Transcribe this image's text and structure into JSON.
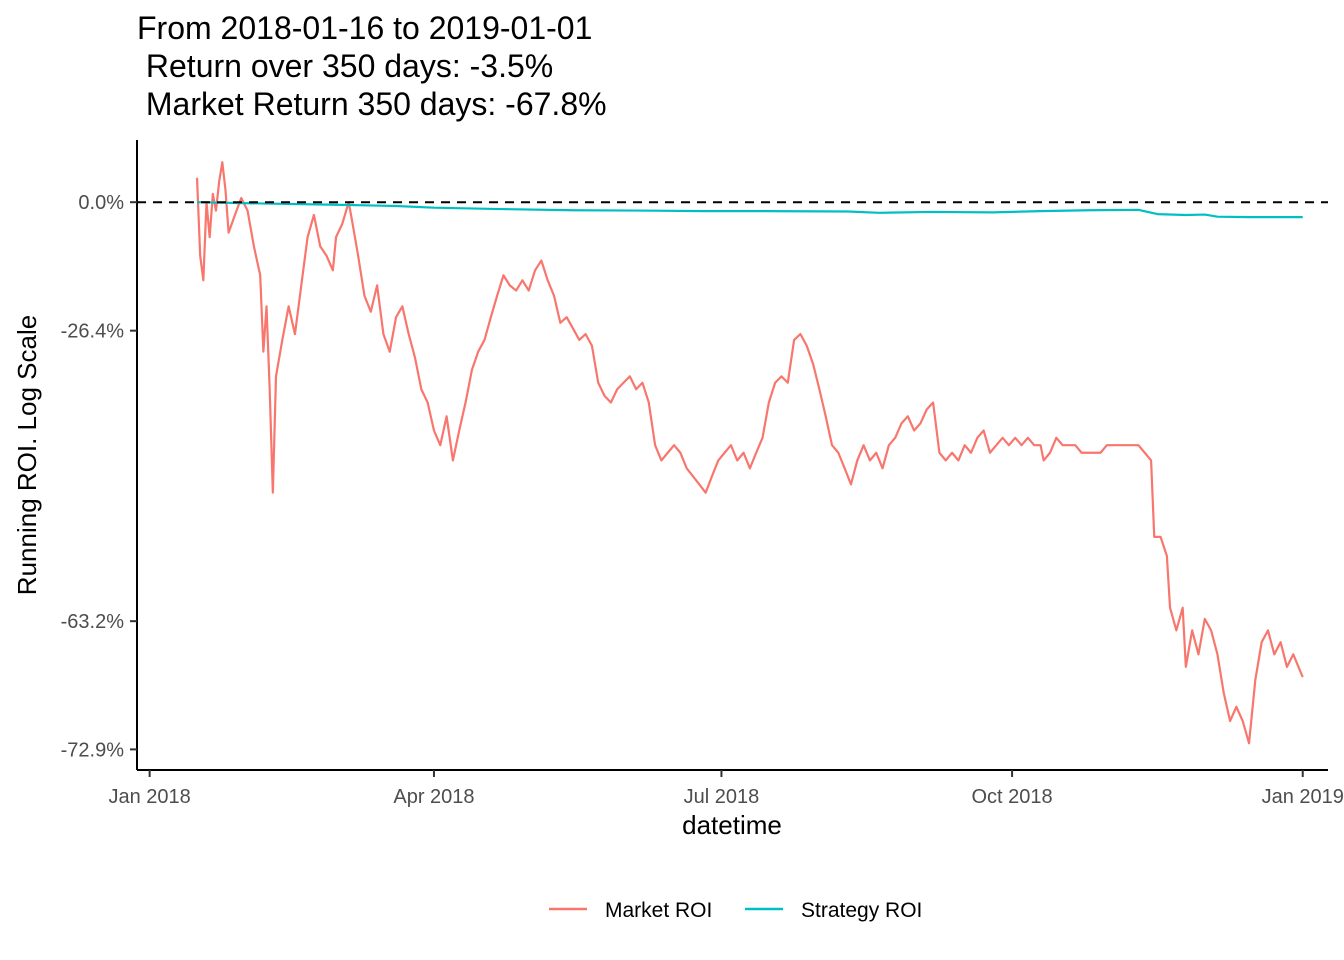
{
  "chart_data": {
    "type": "line",
    "title_lines": [
      "From 2018-01-16 to 2019-01-01",
      " Return over 350 days: -3.5%",
      " Market Return 350 days: -67.8%"
    ],
    "xlabel": "datetime",
    "ylabel": "Running ROI. Log Scale",
    "y_scale": "log",
    "x_range": [
      "2017-12-28",
      "2019-01-09"
    ],
    "y_range_pct": [
      -74.2,
      16.0
    ],
    "x_ticks": [
      {
        "date": "2018-01-01",
        "label": "Jan 2018"
      },
      {
        "date": "2018-04-01",
        "label": "Apr 2018"
      },
      {
        "date": "2018-07-01",
        "label": "Jul 2018"
      },
      {
        "date": "2018-10-01",
        "label": "Oct 2018"
      },
      {
        "date": "2019-01-01",
        "label": "Jan 2019"
      }
    ],
    "y_ticks": [
      {
        "value": 0.0,
        "label": "0.0%"
      },
      {
        "value": -26.4,
        "label": "-26.4%"
      },
      {
        "value": -63.2,
        "label": "-63.2%"
      },
      {
        "value": -72.9,
        "label": "-72.9%"
      }
    ],
    "reference_line": {
      "value": 0.0,
      "style": "dashed",
      "color": "#000000"
    },
    "grid": false,
    "legend_position": "bottom",
    "series": [
      {
        "name": "Market ROI",
        "color": "#F8766D",
        "points": [
          [
            "2018-01-16",
            6
          ],
          [
            "2018-01-17",
            -12
          ],
          [
            "2018-01-18",
            -17
          ],
          [
            "2018-01-19",
            0
          ],
          [
            "2018-01-20",
            -8
          ],
          [
            "2018-01-21",
            2
          ],
          [
            "2018-01-22",
            -2
          ],
          [
            "2018-01-23",
            5
          ],
          [
            "2018-01-24",
            10
          ],
          [
            "2018-01-25",
            3
          ],
          [
            "2018-01-26",
            -7
          ],
          [
            "2018-01-28",
            -3
          ],
          [
            "2018-01-30",
            1
          ],
          [
            "2018-02-01",
            -2
          ],
          [
            "2018-02-03",
            -10
          ],
          [
            "2018-02-05",
            -16
          ],
          [
            "2018-02-06",
            -30
          ],
          [
            "2018-02-07",
            -22
          ],
          [
            "2018-02-08",
            -36
          ],
          [
            "2018-02-09",
            -50
          ],
          [
            "2018-02-10",
            -34
          ],
          [
            "2018-02-12",
            -28
          ],
          [
            "2018-02-14",
            -22
          ],
          [
            "2018-02-16",
            -27
          ],
          [
            "2018-02-18",
            -18
          ],
          [
            "2018-02-20",
            -8
          ],
          [
            "2018-02-22",
            -3
          ],
          [
            "2018-02-24",
            -10
          ],
          [
            "2018-02-26",
            -12
          ],
          [
            "2018-02-28",
            -15
          ],
          [
            "2018-03-01",
            -8
          ],
          [
            "2018-03-03",
            -5
          ],
          [
            "2018-03-05",
            0
          ],
          [
            "2018-03-06",
            -4
          ],
          [
            "2018-03-08",
            -12
          ],
          [
            "2018-03-10",
            -20
          ],
          [
            "2018-03-12",
            -23
          ],
          [
            "2018-03-14",
            -18
          ],
          [
            "2018-03-16",
            -27
          ],
          [
            "2018-03-18",
            -30
          ],
          [
            "2018-03-20",
            -24
          ],
          [
            "2018-03-22",
            -22
          ],
          [
            "2018-03-24",
            -27
          ],
          [
            "2018-03-26",
            -31
          ],
          [
            "2018-03-28",
            -36
          ],
          [
            "2018-03-30",
            -38
          ],
          [
            "2018-04-01",
            -42
          ],
          [
            "2018-04-03",
            -44
          ],
          [
            "2018-04-05",
            -40
          ],
          [
            "2018-04-07",
            -46
          ],
          [
            "2018-04-09",
            -42
          ],
          [
            "2018-04-11",
            -38
          ],
          [
            "2018-04-13",
            -33
          ],
          [
            "2018-04-15",
            -30
          ],
          [
            "2018-04-17",
            -28
          ],
          [
            "2018-04-19",
            -24
          ],
          [
            "2018-04-21",
            -20
          ],
          [
            "2018-04-23",
            -16
          ],
          [
            "2018-04-25",
            -18
          ],
          [
            "2018-04-27",
            -19
          ],
          [
            "2018-04-29",
            -17
          ],
          [
            "2018-05-01",
            -19
          ],
          [
            "2018-05-03",
            -15
          ],
          [
            "2018-05-05",
            -13
          ],
          [
            "2018-05-07",
            -17
          ],
          [
            "2018-05-09",
            -20
          ],
          [
            "2018-05-11",
            -25
          ],
          [
            "2018-05-13",
            -24
          ],
          [
            "2018-05-15",
            -26
          ],
          [
            "2018-05-17",
            -28
          ],
          [
            "2018-05-19",
            -27
          ],
          [
            "2018-05-21",
            -29
          ],
          [
            "2018-05-23",
            -35
          ],
          [
            "2018-05-25",
            -37
          ],
          [
            "2018-05-27",
            -38
          ],
          [
            "2018-05-29",
            -36
          ],
          [
            "2018-05-31",
            -35
          ],
          [
            "2018-06-02",
            -34
          ],
          [
            "2018-06-04",
            -36
          ],
          [
            "2018-06-06",
            -35
          ],
          [
            "2018-06-08",
            -38
          ],
          [
            "2018-06-10",
            -44
          ],
          [
            "2018-06-12",
            -46
          ],
          [
            "2018-06-14",
            -45
          ],
          [
            "2018-06-16",
            -44
          ],
          [
            "2018-06-18",
            -45
          ],
          [
            "2018-06-20",
            -47
          ],
          [
            "2018-06-22",
            -48
          ],
          [
            "2018-06-24",
            -49
          ],
          [
            "2018-06-26",
            -50
          ],
          [
            "2018-06-28",
            -48
          ],
          [
            "2018-06-30",
            -46
          ],
          [
            "2018-07-02",
            -45
          ],
          [
            "2018-07-04",
            -44
          ],
          [
            "2018-07-06",
            -46
          ],
          [
            "2018-07-08",
            -45
          ],
          [
            "2018-07-10",
            -47
          ],
          [
            "2018-07-12",
            -45
          ],
          [
            "2018-07-14",
            -43
          ],
          [
            "2018-07-16",
            -38
          ],
          [
            "2018-07-18",
            -35
          ],
          [
            "2018-07-20",
            -34
          ],
          [
            "2018-07-22",
            -35
          ],
          [
            "2018-07-24",
            -28
          ],
          [
            "2018-07-26",
            -27
          ],
          [
            "2018-07-28",
            -29
          ],
          [
            "2018-07-30",
            -32
          ],
          [
            "2018-08-01",
            -36
          ],
          [
            "2018-08-03",
            -40
          ],
          [
            "2018-08-05",
            -44
          ],
          [
            "2018-08-07",
            -45
          ],
          [
            "2018-08-09",
            -47
          ],
          [
            "2018-08-11",
            -49
          ],
          [
            "2018-08-13",
            -46
          ],
          [
            "2018-08-15",
            -44
          ],
          [
            "2018-08-17",
            -46
          ],
          [
            "2018-08-19",
            -45
          ],
          [
            "2018-08-21",
            -47
          ],
          [
            "2018-08-23",
            -44
          ],
          [
            "2018-08-25",
            -43
          ],
          [
            "2018-08-27",
            -41
          ],
          [
            "2018-08-29",
            -40
          ],
          [
            "2018-08-31",
            -42
          ],
          [
            "2018-09-02",
            -41
          ],
          [
            "2018-09-04",
            -39
          ],
          [
            "2018-09-06",
            -38
          ],
          [
            "2018-09-08",
            -45
          ],
          [
            "2018-09-10",
            -46
          ],
          [
            "2018-09-12",
            -45
          ],
          [
            "2018-09-14",
            -46
          ],
          [
            "2018-09-16",
            -44
          ],
          [
            "2018-09-18",
            -45
          ],
          [
            "2018-09-20",
            -43
          ],
          [
            "2018-09-22",
            -42
          ],
          [
            "2018-09-24",
            -45
          ],
          [
            "2018-09-26",
            -44
          ],
          [
            "2018-09-28",
            -43
          ],
          [
            "2018-09-30",
            -44
          ],
          [
            "2018-10-02",
            -43
          ],
          [
            "2018-10-04",
            -44
          ],
          [
            "2018-10-06",
            -43
          ],
          [
            "2018-10-08",
            -44
          ],
          [
            "2018-10-10",
            -44
          ],
          [
            "2018-10-11",
            -46
          ],
          [
            "2018-10-13",
            -45
          ],
          [
            "2018-10-15",
            -43
          ],
          [
            "2018-10-17",
            -44
          ],
          [
            "2018-10-19",
            -44
          ],
          [
            "2018-10-21",
            -44
          ],
          [
            "2018-10-23",
            -45
          ],
          [
            "2018-10-25",
            -45
          ],
          [
            "2018-10-27",
            -45
          ],
          [
            "2018-10-29",
            -45
          ],
          [
            "2018-10-31",
            -44
          ],
          [
            "2018-11-02",
            -44
          ],
          [
            "2018-11-04",
            -44
          ],
          [
            "2018-11-06",
            -44
          ],
          [
            "2018-11-08",
            -44
          ],
          [
            "2018-11-10",
            -44
          ],
          [
            "2018-11-12",
            -45
          ],
          [
            "2018-11-14",
            -46
          ],
          [
            "2018-11-15",
            -55
          ],
          [
            "2018-11-17",
            -55
          ],
          [
            "2018-11-19",
            -57
          ],
          [
            "2018-11-20",
            -62
          ],
          [
            "2018-11-22",
            -64
          ],
          [
            "2018-11-24",
            -62
          ],
          [
            "2018-11-25",
            -67
          ],
          [
            "2018-11-27",
            -64
          ],
          [
            "2018-11-29",
            -66
          ],
          [
            "2018-12-01",
            -63
          ],
          [
            "2018-12-03",
            -64
          ],
          [
            "2018-12-05",
            -66
          ],
          [
            "2018-12-07",
            -69
          ],
          [
            "2018-12-09",
            -71
          ],
          [
            "2018-12-11",
            -70
          ],
          [
            "2018-12-13",
            -71
          ],
          [
            "2018-12-15",
            -72.5
          ],
          [
            "2018-12-17",
            -68
          ],
          [
            "2018-12-19",
            -65
          ],
          [
            "2018-12-21",
            -64
          ],
          [
            "2018-12-23",
            -66
          ],
          [
            "2018-12-25",
            -65
          ],
          [
            "2018-12-27",
            -67
          ],
          [
            "2018-12-29",
            -66
          ],
          [
            "2019-01-01",
            -67.8
          ]
        ]
      },
      {
        "name": "Strategy ROI",
        "color": "#00BFC4",
        "points": [
          [
            "2018-01-16",
            0.0
          ],
          [
            "2018-02-05",
            -0.3
          ],
          [
            "2018-03-01",
            -0.6
          ],
          [
            "2018-03-20",
            -0.9
          ],
          [
            "2018-04-01",
            -1.3
          ],
          [
            "2018-04-20",
            -1.6
          ],
          [
            "2018-05-15",
            -1.9
          ],
          [
            "2018-06-10",
            -2.0
          ],
          [
            "2018-06-25",
            -2.1
          ],
          [
            "2018-07-15",
            -2.1
          ],
          [
            "2018-08-10",
            -2.2
          ],
          [
            "2018-08-20",
            -2.5
          ],
          [
            "2018-09-05",
            -2.3
          ],
          [
            "2018-09-25",
            -2.4
          ],
          [
            "2018-10-10",
            -2.1
          ],
          [
            "2018-10-25",
            -1.9
          ],
          [
            "2018-11-10",
            -1.8
          ],
          [
            "2018-11-16",
            -2.8
          ],
          [
            "2018-11-25",
            -3.0
          ],
          [
            "2018-12-01",
            -2.9
          ],
          [
            "2018-12-05",
            -3.4
          ],
          [
            "2018-12-15",
            -3.5
          ],
          [
            "2019-01-01",
            -3.5
          ]
        ]
      }
    ]
  }
}
